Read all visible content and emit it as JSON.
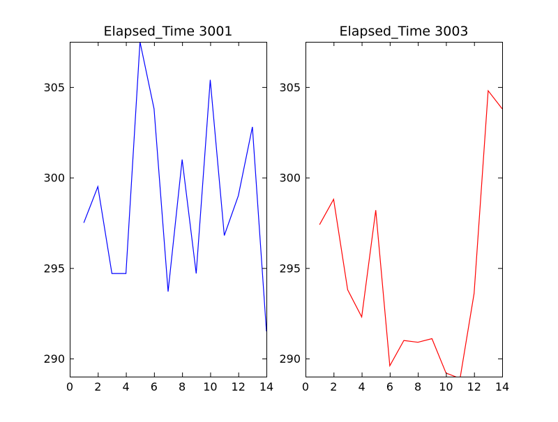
{
  "chart_data": [
    {
      "type": "line",
      "title": "Elapsed_Time 3001",
      "xlabel": "",
      "ylabel": "",
      "xlim": [
        0,
        14
      ],
      "ylim": [
        289,
        307.5
      ],
      "xticks": [
        0,
        2,
        4,
        6,
        8,
        10,
        12,
        14
      ],
      "yticks": [
        290,
        295,
        300,
        305
      ],
      "grid": false,
      "series": [
        {
          "color": "#0000ff",
          "x": [
            1,
            2,
            3,
            4,
            5,
            6,
            7,
            8,
            9,
            10,
            11,
            12,
            13,
            14
          ],
          "y": [
            297.5,
            299.5,
            294.7,
            294.7,
            307.5,
            303.8,
            293.7,
            301.0,
            294.7,
            305.4,
            296.8,
            299.0,
            302.8,
            291.5
          ]
        }
      ]
    },
    {
      "type": "line",
      "title": "Elapsed_Time 3003",
      "xlabel": "",
      "ylabel": "",
      "xlim": [
        0,
        14
      ],
      "ylim": [
        289,
        307.5
      ],
      "xticks": [
        0,
        2,
        4,
        6,
        8,
        10,
        12,
        14
      ],
      "yticks": [
        290,
        295,
        300,
        305
      ],
      "grid": false,
      "series": [
        {
          "color": "#ff0000",
          "x": [
            1,
            2,
            3,
            4,
            5,
            6,
            7,
            8,
            9,
            10,
            11,
            12,
            13,
            14
          ],
          "y": [
            297.4,
            298.8,
            293.8,
            292.3,
            298.2,
            289.6,
            291.0,
            290.9,
            291.1,
            289.2,
            288.9,
            293.6,
            304.8,
            303.8
          ]
        }
      ]
    }
  ]
}
